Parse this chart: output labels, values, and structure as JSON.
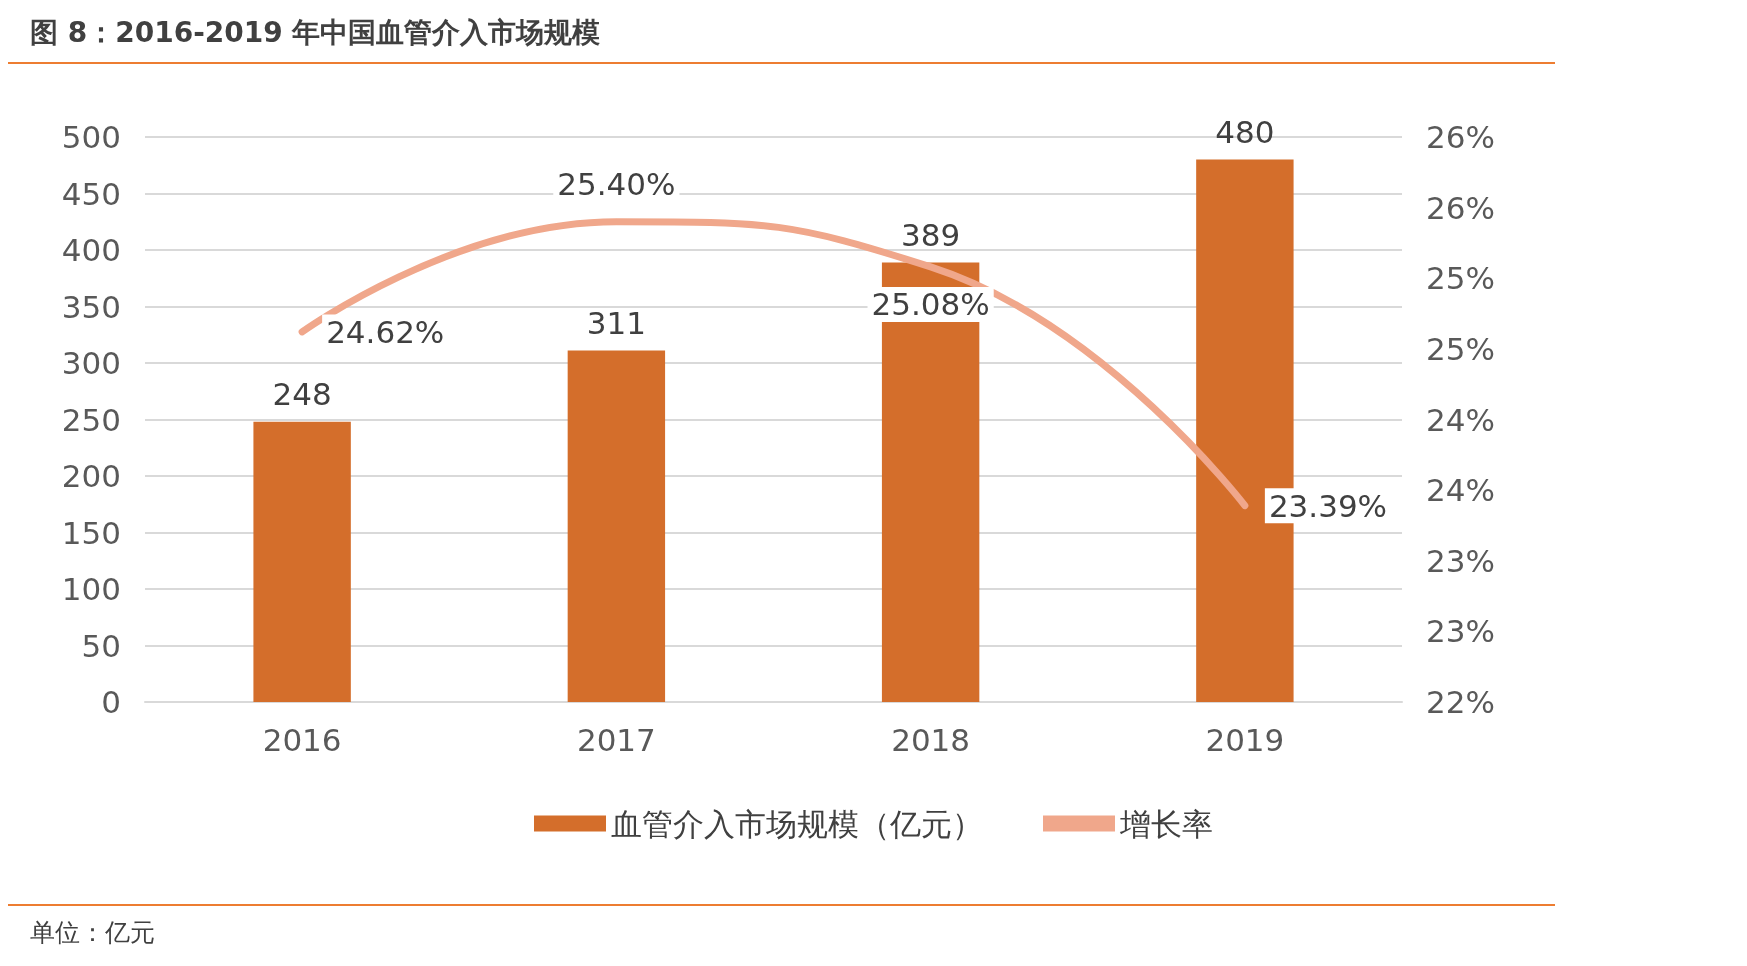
{
  "chart_data": {
    "type": "bar",
    "title": "图 8：2016-2019 年中国血管介入市场规模",
    "categories": [
      "2016",
      "2017",
      "2018",
      "2019"
    ],
    "series": [
      {
        "name": "血管介入市场规模（亿元）",
        "color": "#d46e2b",
        "values": [
          248,
          311,
          389,
          480
        ],
        "value_labels": [
          "248",
          "311",
          "389",
          "480"
        ]
      },
      {
        "name": "增长率",
        "type": "line",
        "axis": "y2",
        "color": "#f0a78b",
        "values": [
          24.62,
          25.4,
          25.08,
          23.39
        ],
        "value_labels": [
          "24.62%",
          "25.40%",
          "25.08%",
          "23.39%"
        ]
      }
    ],
    "ylim": [
      0,
      500
    ],
    "yticks": [
      0,
      50,
      100,
      150,
      200,
      250,
      300,
      350,
      400,
      450,
      500
    ],
    "y2lim": [
      22,
      26
    ],
    "y2ticks": [
      {
        "value": 22,
        "label": "22%"
      },
      {
        "value": 22.5,
        "label": "23%"
      },
      {
        "value": 23,
        "label": "23%"
      },
      {
        "value": 23.5,
        "label": "24%"
      },
      {
        "value": 24,
        "label": "24%"
      },
      {
        "value": 24.5,
        "label": "25%"
      },
      {
        "value": 25,
        "label": "25%"
      },
      {
        "value": 25.5,
        "label": "26%"
      },
      {
        "value": 26,
        "label": "26%"
      }
    ],
    "grid": "y",
    "legend": "bottom",
    "marker": "none",
    "line_style": "solid",
    "annotations": [
      "单位：亿元"
    ]
  }
}
